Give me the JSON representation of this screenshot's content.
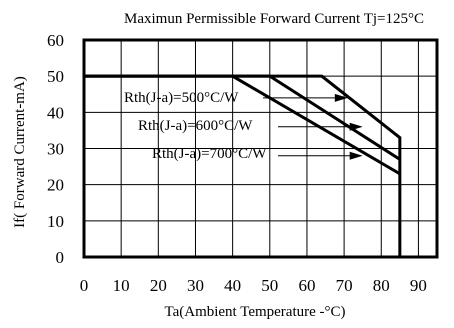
{
  "chart_data": {
    "type": "line",
    "title": "Maximun Permissible Forward Current Tj=125°C",
    "xlabel": "Ta(Ambient Temperature -°C)",
    "ylabel": "If( Forward Current-mA)",
    "xlim": [
      0,
      95
    ],
    "ylim": [
      0,
      60
    ],
    "xticks": [
      0,
      10,
      20,
      30,
      40,
      50,
      60,
      70,
      80,
      90
    ],
    "yticks": [
      0,
      10,
      20,
      30,
      40,
      50,
      60
    ],
    "grid": true,
    "series": [
      {
        "name": "Rth(J-a)=500°C/W",
        "x": [
          0,
          64,
          85,
          85
        ],
        "y": [
          50,
          50,
          33,
          0
        ]
      },
      {
        "name": "Rth(J-a)=600°C/W",
        "x": [
          0,
          50,
          85
        ],
        "y": [
          50,
          50,
          27
        ]
      },
      {
        "name": "Rth(J-a)=700°C/W",
        "x": [
          0,
          40,
          85
        ],
        "y": [
          50,
          50,
          23
        ]
      }
    ],
    "annotations": [
      {
        "text": "Rth(J-a)=500°C/W",
        "arrow_to": [
          71,
          44
        ]
      },
      {
        "text": "Rth(J-a)=600°C/W",
        "arrow_to": [
          75,
          36
        ]
      },
      {
        "text": "Rth(J-a)=700°C/W",
        "arrow_to": [
          75,
          28
        ]
      }
    ]
  }
}
